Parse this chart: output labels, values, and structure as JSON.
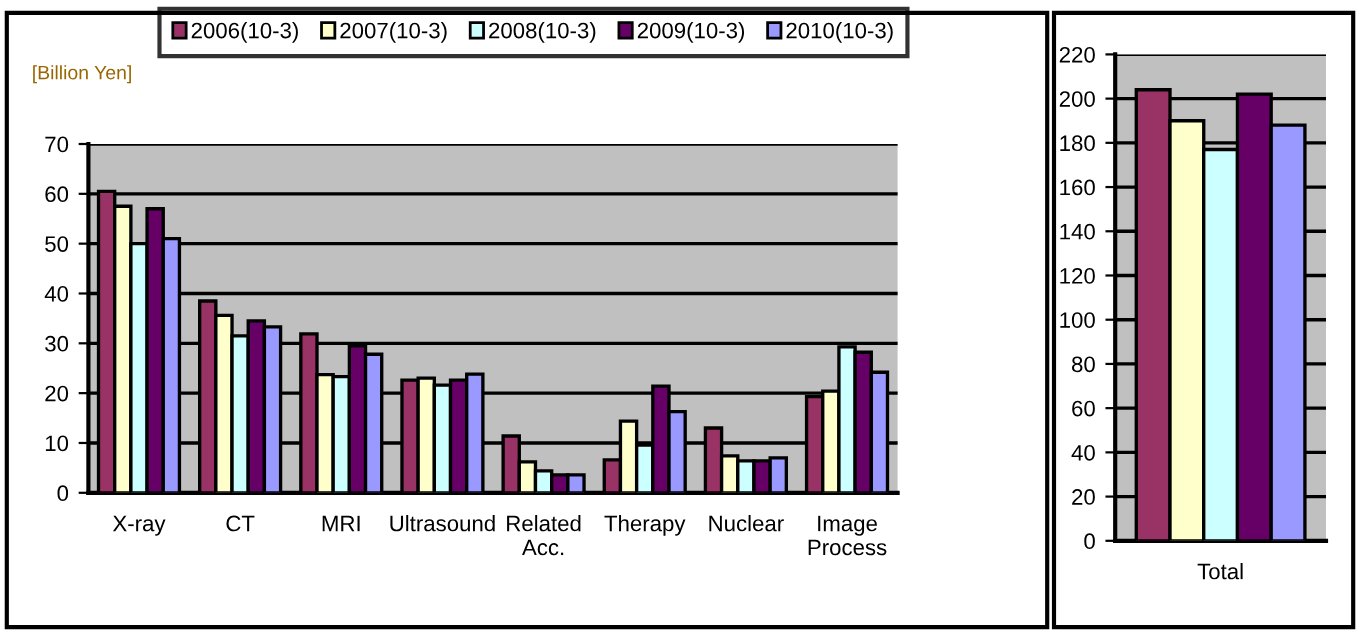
{
  "chart_data": [
    {
      "type": "bar",
      "ylabel": "[Billion Yen]",
      "categories": [
        "X-ray",
        "CT",
        "MRI",
        "Ultrasound",
        "Related\nAcc.",
        "Therapy",
        "Nuclear",
        "Image\nProcess"
      ],
      "series": [
        {
          "name": "2006(10-3)",
          "color": "#993366",
          "values": [
            60.5,
            38.5,
            31.9,
            22.6,
            11.4,
            6.6,
            13,
            19.3
          ]
        },
        {
          "name": "2007(10-3)",
          "color": "#ffffcc",
          "values": [
            57.5,
            35.6,
            23.7,
            23,
            6.2,
            14.4,
            7.4,
            20.4
          ]
        },
        {
          "name": "2008(10-3)",
          "color": "#ccffff",
          "values": [
            50,
            31.5,
            23.3,
            21.6,
            4.4,
            9.6,
            6.4,
            29.3
          ]
        },
        {
          "name": "2009(10-3)",
          "color": "#660066",
          "values": [
            57,
            34.5,
            29.5,
            22.6,
            3.6,
            21.4,
            6.4,
            28.2
          ]
        },
        {
          "name": "2010(10-3)",
          "color": "#9999ff",
          "values": [
            51,
            33.3,
            27.8,
            23.8,
            3.6,
            16.3,
            7,
            24.2
          ]
        }
      ],
      "ylim": [
        0,
        70
      ],
      "yticks": [
        0,
        10,
        20,
        30,
        40,
        50,
        60,
        70
      ],
      "grid": "y",
      "legend": "top"
    },
    {
      "type": "bar",
      "categories": [
        "Total"
      ],
      "series": [
        {
          "color": "#993366",
          "values": [
            204
          ]
        },
        {
          "color": "#ffffcc",
          "values": [
            190
          ]
        },
        {
          "color": "#ccffff",
          "values": [
            177
          ]
        },
        {
          "color": "#660066",
          "values": [
            202
          ]
        },
        {
          "color": "#9999ff",
          "values": [
            188
          ]
        }
      ],
      "ylim": [
        0,
        220
      ],
      "yticks": [
        0,
        20,
        40,
        60,
        80,
        100,
        120,
        140,
        160,
        180,
        200,
        220
      ],
      "grid": "y"
    }
  ]
}
